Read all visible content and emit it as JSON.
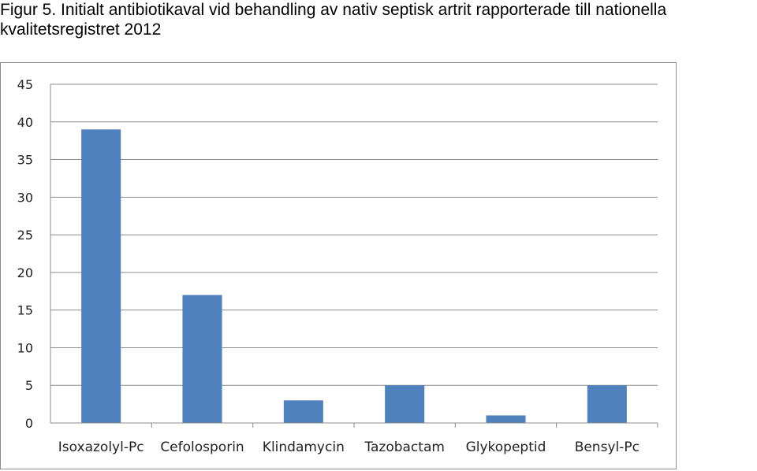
{
  "figure": {
    "caption_line1": "Figur 5. Initialt antibiotikaval vid behandling av nativ septisk artrit rapporterade till nationella",
    "caption_line2": "kvalitetsregistret 2012"
  },
  "chart_data": {
    "type": "bar",
    "categories": [
      "Isoxazolyl-Pc",
      "Cefolosporin",
      "Klindamycin",
      "Tazobactam",
      "Glykopeptid",
      "Bensyl-Pc"
    ],
    "values": [
      39,
      17,
      3,
      5,
      1,
      5
    ],
    "ylim": [
      0,
      45
    ],
    "yticks": [
      "0",
      "5",
      "10",
      "15",
      "20",
      "25",
      "30",
      "35",
      "40",
      "45"
    ],
    "bar_color": "#4f81bd",
    "grid": true,
    "legend": "none"
  }
}
